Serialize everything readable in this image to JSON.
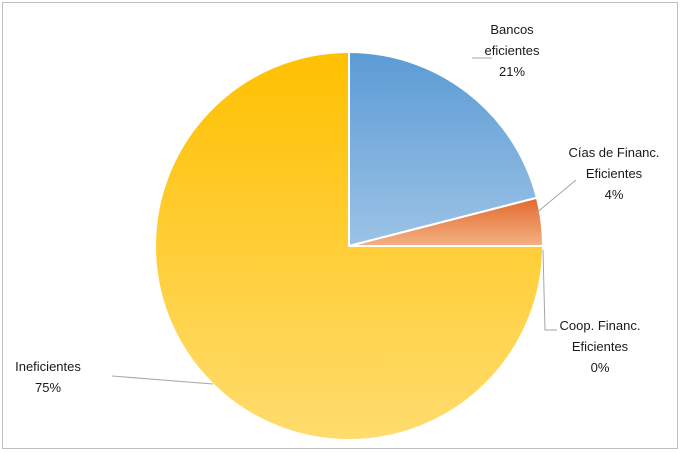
{
  "chart_data": {
    "type": "pie",
    "title": "",
    "legend": "none",
    "slices": [
      {
        "name": "Bancos eficientes",
        "label_lines": [
          "Bancos",
          "eficientes",
          "21%"
        ],
        "value": 21,
        "color_top": "#5b9bd5",
        "color_bottom": "#9cc3e6"
      },
      {
        "name": "Cías de Financ. Eficientes",
        "label_lines": [
          "Cías de Financ.",
          "Eficientes",
          "4%"
        ],
        "value": 4,
        "color_top": "#e2692e",
        "color_bottom": "#f4b183"
      },
      {
        "name": "Coop. Financ. Eficientes",
        "label_lines": [
          "Coop. Financ.",
          "Eficientes",
          "0%"
        ],
        "value": 0,
        "color_top": "#a5a5a5",
        "color_bottom": "#d0d0d0"
      },
      {
        "name": "Ineficientes",
        "label_lines": [
          "Ineficientes",
          "75%"
        ],
        "value": 75,
        "color_top": "#ffc000",
        "color_bottom": "#ffdc6e"
      }
    ]
  }
}
